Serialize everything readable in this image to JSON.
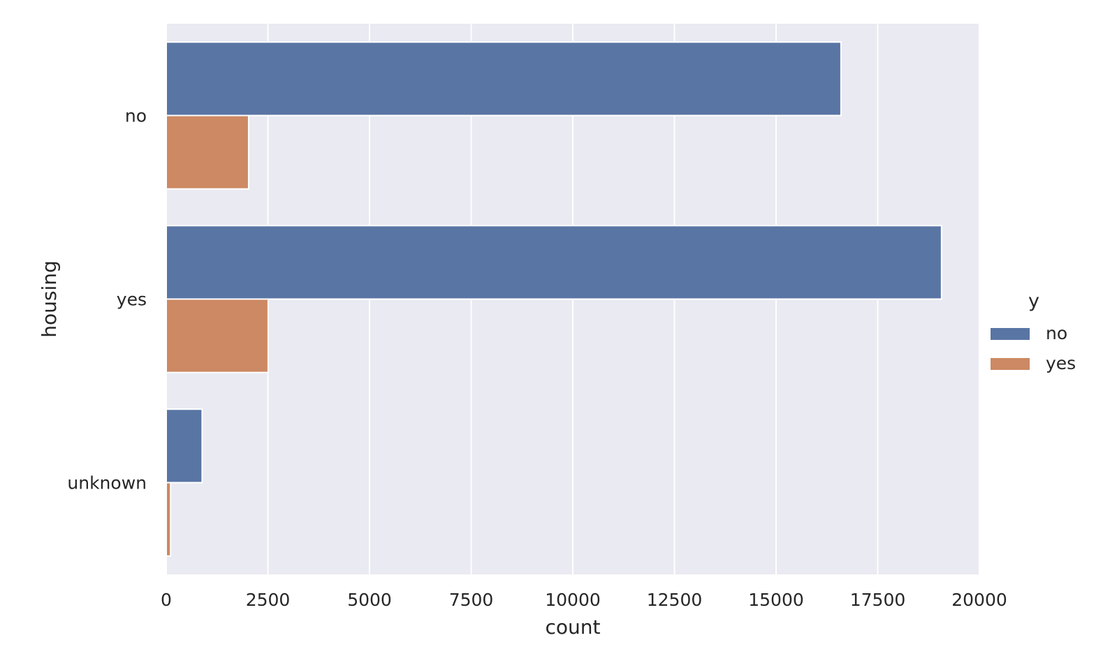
{
  "chart_data": {
    "type": "bar",
    "orientation": "horizontal",
    "title": "",
    "xlabel": "count",
    "ylabel": "housing",
    "categories": [
      "no",
      "yes",
      "unknown"
    ],
    "series": [
      {
        "name": "no",
        "values": [
          16596,
          19069,
          883
        ],
        "color": "#5975a4"
      },
      {
        "name": "yes",
        "values": [
          2026,
          2507,
          107
        ],
        "color": "#cc8963"
      }
    ],
    "xlim": [
      0,
      20000
    ],
    "xticks": [
      0,
      2500,
      5000,
      7500,
      10000,
      12500,
      15000,
      17500,
      20000
    ],
    "grid": true,
    "legend": {
      "title": "y",
      "placement": "right"
    },
    "background_color": "#eaeaf2"
  }
}
